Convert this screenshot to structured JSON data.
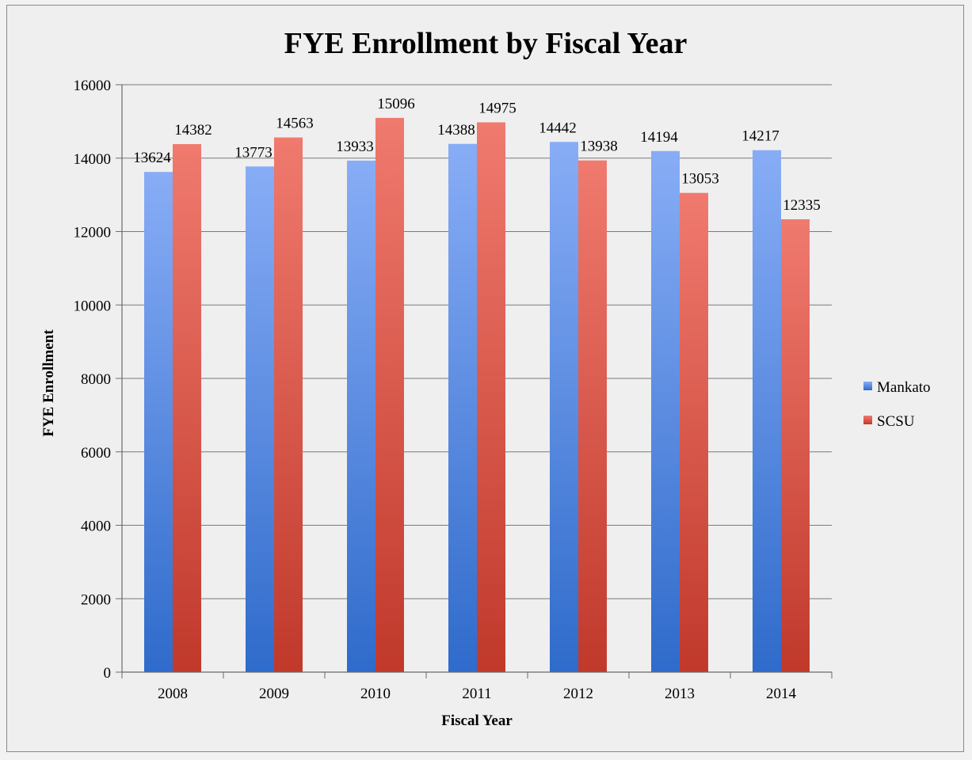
{
  "chart_data": {
    "type": "bar",
    "title": "FYE Enrollment by Fiscal Year",
    "xlabel": "Fiscal Year",
    "ylabel": "FYE Enrollment",
    "categories": [
      "2008",
      "2009",
      "2010",
      "2011",
      "2012",
      "2013",
      "2014"
    ],
    "series": [
      {
        "name": "Mankato",
        "values": [
          13624,
          13773,
          13933,
          14388,
          14442,
          14194,
          14217
        ],
        "color": "#4a7fd9"
      },
      {
        "name": "SCSU",
        "values": [
          14382,
          14563,
          15096,
          14975,
          13938,
          13053,
          12335
        ],
        "color": "#d24a3e"
      }
    ],
    "ylim": [
      0,
      16000
    ],
    "yticks": [
      0,
      2000,
      4000,
      6000,
      8000,
      10000,
      12000,
      14000,
      16000
    ],
    "grid": true,
    "legend_position": "right",
    "data_labels": true
  }
}
